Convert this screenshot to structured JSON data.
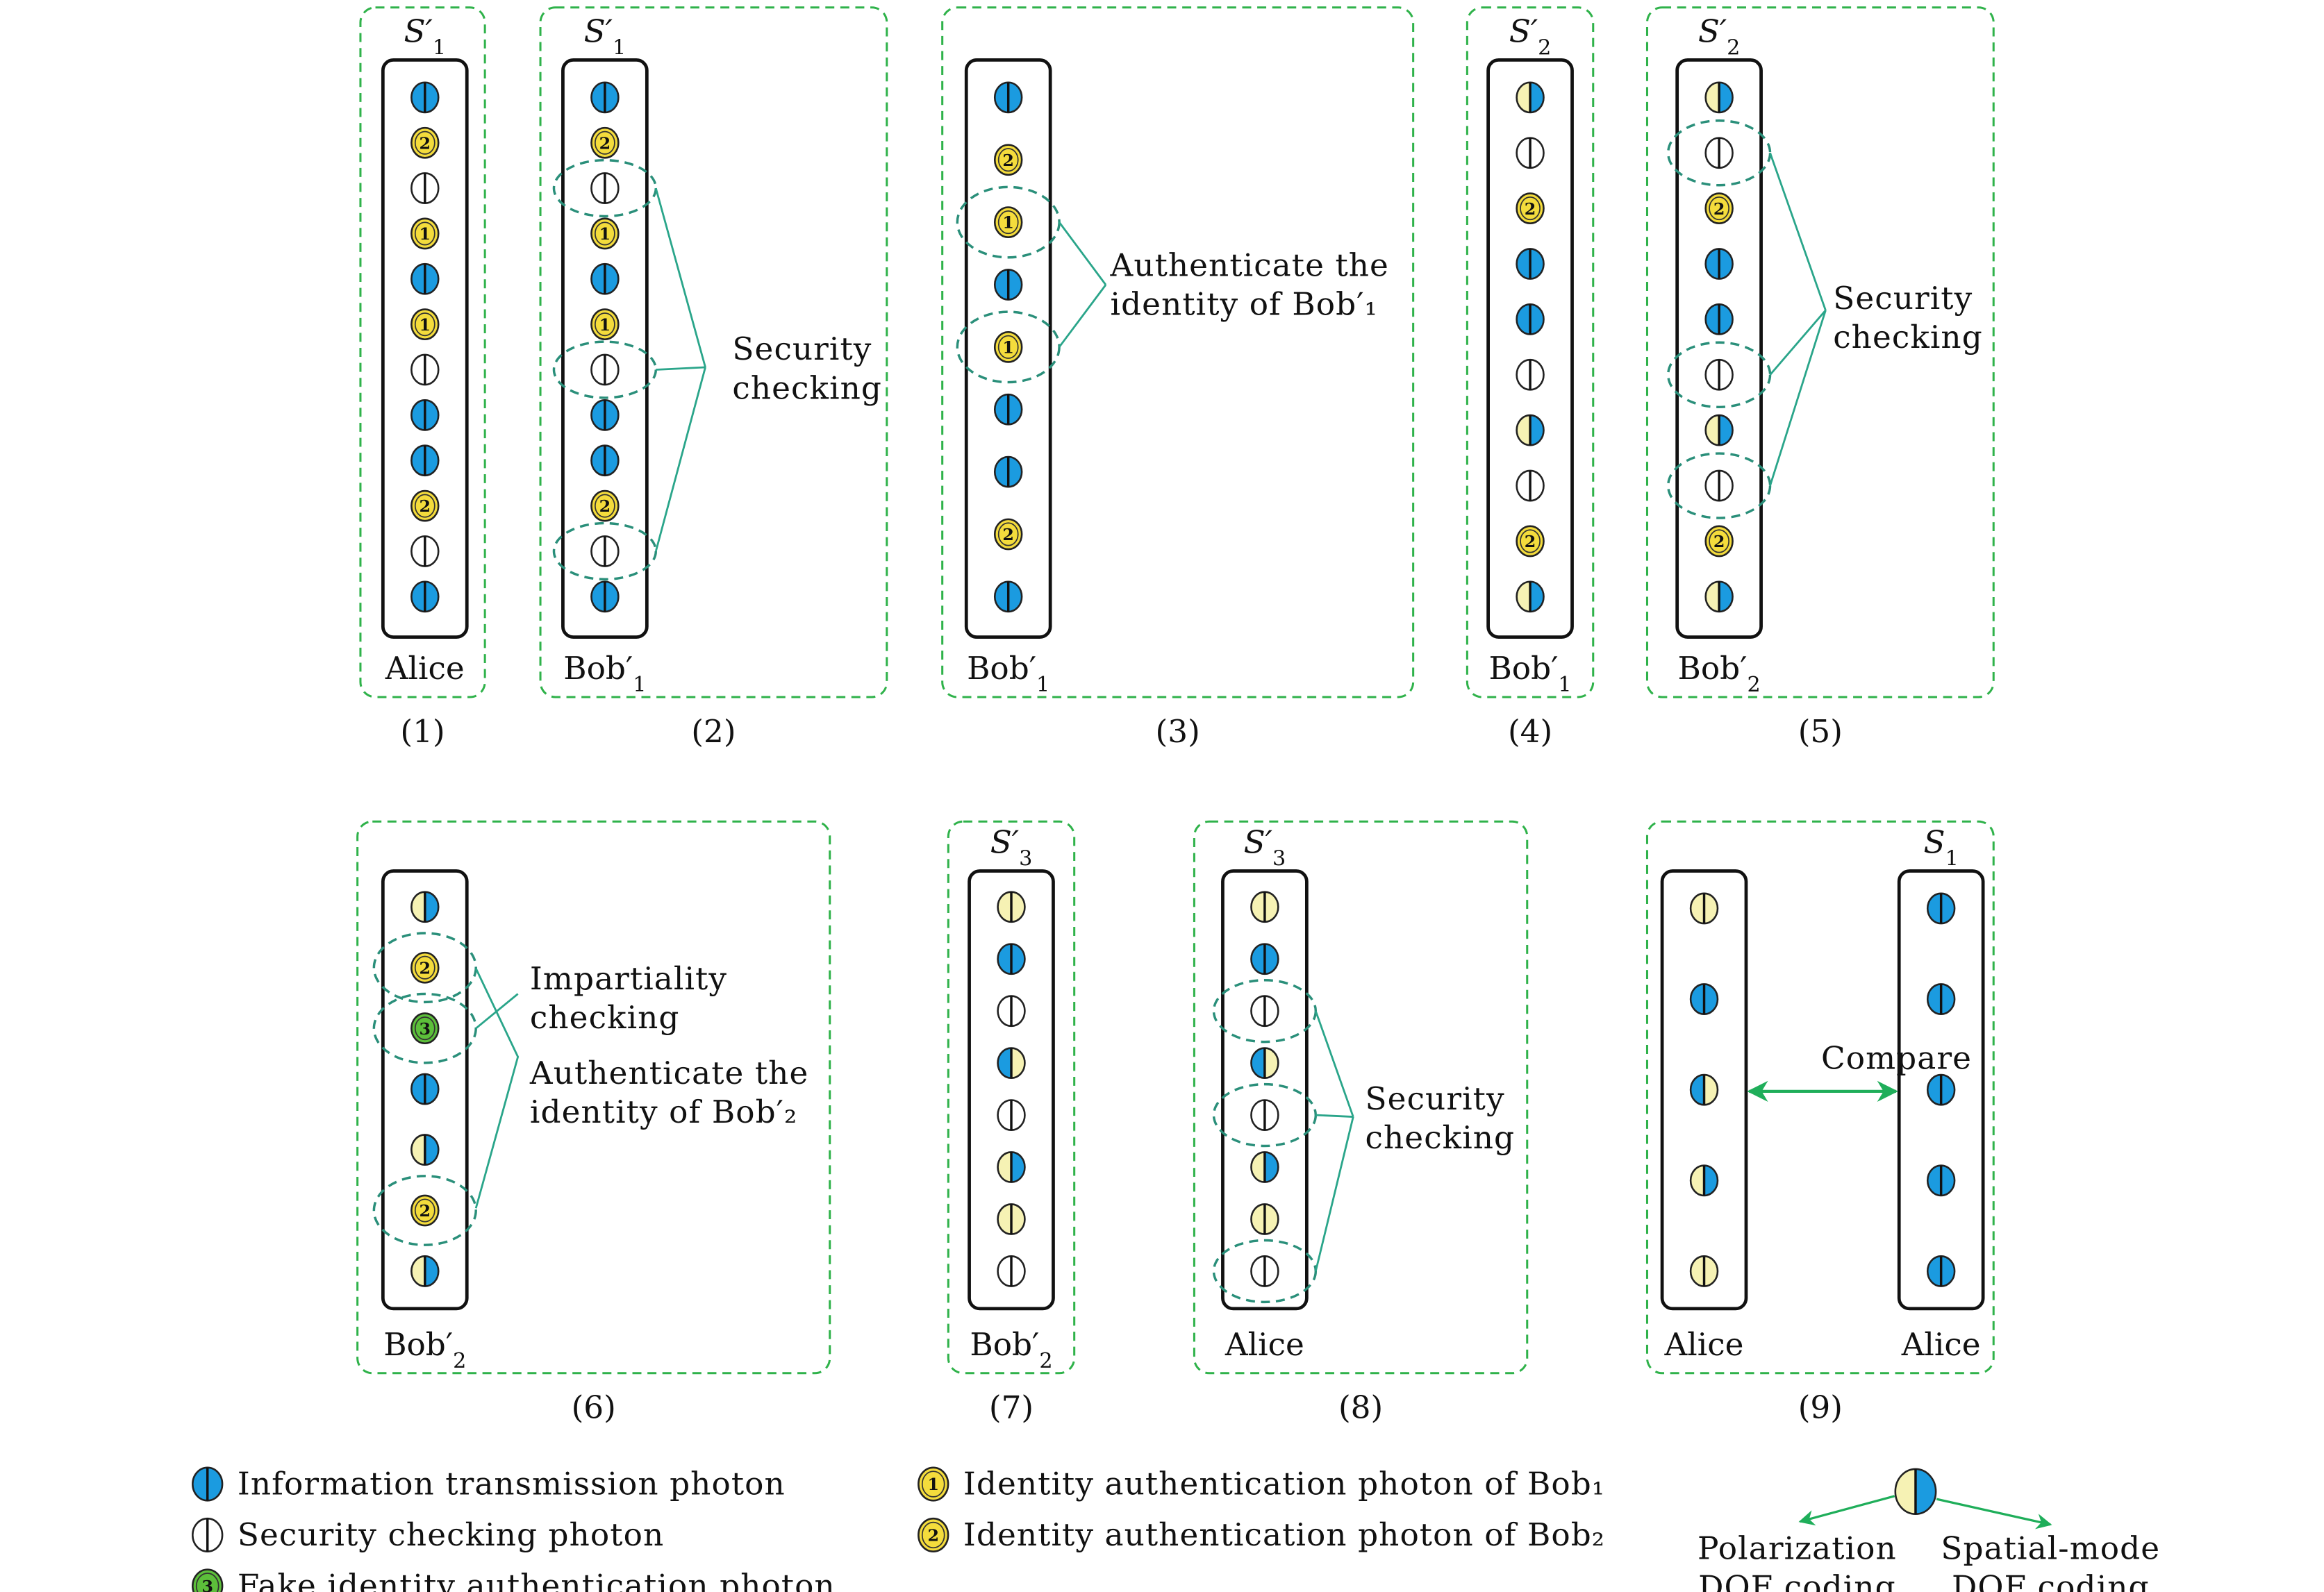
{
  "colors": {
    "information_blue": "#1b9be0",
    "identity_yellow": "#f4dc3c",
    "polarization_light_yellow": "#f6f2b4",
    "fake_green": "#5cbf3a",
    "security_white": "#ffffff",
    "panel_border_green": "#2fb24a",
    "bracket_teal": "#2aa58a",
    "arrow_green": "#1fae5a"
  },
  "photon_types": {
    "B": "information-transmission-photon",
    "W": "security-checking-photon",
    "Y1": "identity-authentication-photon-bob1",
    "Y2": "identity-authentication-photon-bob2",
    "G3": "fake-identity-authentication-photon",
    "M": "polarization-yellow-spatial-blue-photon",
    "R": "polarization-blue-spatial-yellow-photon",
    "L": "polarization-yellow-photon"
  },
  "panels": [
    {
      "caption": "(1)",
      "columns": [
        {
          "top": {
            "base": "S′",
            "sub": "1"
          },
          "bottom": {
            "base": "Alice",
            "sub": ""
          },
          "photons": [
            "B",
            "Y2",
            "W",
            "Y1",
            "B",
            "Y1",
            "W",
            "B",
            "B",
            "Y2",
            "W",
            "B"
          ],
          "circled": []
        }
      ],
      "annotations": []
    },
    {
      "caption": "(2)",
      "columns": [
        {
          "top": {
            "base": "S′",
            "sub": "1"
          },
          "bottom": {
            "base": "Bob′",
            "sub": "1"
          },
          "photons": [
            "B",
            "Y2",
            "W",
            "Y1",
            "B",
            "Y1",
            "W",
            "B",
            "B",
            "Y2",
            "W",
            "B"
          ],
          "circled": [
            2,
            6,
            10
          ]
        }
      ],
      "annotations": [
        {
          "lines": [
            "Security",
            "checking"
          ]
        }
      ]
    },
    {
      "caption": "(3)",
      "columns": [
        {
          "top": {
            "base": "",
            "sub": ""
          },
          "bottom": {
            "base": "Bob′",
            "sub": "1"
          },
          "photons": [
            "B",
            "Y2",
            "Y1",
            "B",
            "Y1",
            "B",
            "B",
            "Y2",
            "B"
          ],
          "circled": [
            2,
            4
          ]
        }
      ],
      "annotations": [
        {
          "lines": [
            "Authenticate the",
            "identity of Bob′₁"
          ]
        }
      ]
    },
    {
      "caption": "(4)",
      "columns": [
        {
          "top": {
            "base": "S′",
            "sub": "2"
          },
          "bottom": {
            "base": "Bob′",
            "sub": "1"
          },
          "photons": [
            "M",
            "W",
            "Y2",
            "B",
            "B",
            "W",
            "M",
            "W",
            "Y2",
            "M"
          ],
          "circled": []
        }
      ],
      "annotations": []
    },
    {
      "caption": "(5)",
      "columns": [
        {
          "top": {
            "base": "S′",
            "sub": "2"
          },
          "bottom": {
            "base": "Bob′",
            "sub": "2"
          },
          "photons": [
            "M",
            "W",
            "Y2",
            "B",
            "B",
            "W",
            "M",
            "W",
            "Y2",
            "M"
          ],
          "circled": [
            1,
            5,
            7
          ]
        }
      ],
      "annotations": [
        {
          "lines": [
            "Security",
            "checking"
          ]
        }
      ]
    },
    {
      "caption": "(6)",
      "columns": [
        {
          "top": {
            "base": "",
            "sub": ""
          },
          "bottom": {
            "base": "Bob′",
            "sub": "2"
          },
          "photons": [
            "M",
            "Y2",
            "G3",
            "B",
            "M",
            "Y2",
            "M"
          ],
          "circled": [
            1,
            2,
            5
          ]
        }
      ],
      "annotations": [
        {
          "lines": [
            "Impartiality",
            "checking"
          ]
        },
        {
          "lines": [
            "Authenticate the",
            "identity of Bob′₂"
          ]
        }
      ]
    },
    {
      "caption": "(7)",
      "columns": [
        {
          "top": {
            "base": "S′",
            "sub": "3"
          },
          "bottom": {
            "base": "Bob′",
            "sub": "2"
          },
          "photons": [
            "L",
            "B",
            "W",
            "R",
            "W",
            "M",
            "L",
            "W"
          ],
          "circled": []
        }
      ],
      "annotations": []
    },
    {
      "caption": "(8)",
      "columns": [
        {
          "top": {
            "base": "S′",
            "sub": "3"
          },
          "bottom": {
            "base": "Alice",
            "sub": ""
          },
          "photons": [
            "L",
            "B",
            "W",
            "R",
            "W",
            "M",
            "L",
            "W"
          ],
          "circled": [
            2,
            4,
            7
          ]
        }
      ],
      "annotations": [
        {
          "lines": [
            "Security",
            "checking"
          ]
        }
      ]
    },
    {
      "caption": "(9)",
      "columns": [
        {
          "top": {
            "base": "",
            "sub": ""
          },
          "bottom": {
            "base": "Alice",
            "sub": ""
          },
          "photons": [
            "L",
            "B",
            "R",
            "M",
            "L"
          ],
          "circled": []
        },
        {
          "top": {
            "base": "S",
            "sub": "1"
          },
          "bottom": {
            "base": "Alice",
            "sub": ""
          },
          "photons": [
            "B",
            "B",
            "B",
            "B",
            "B"
          ],
          "circled": []
        }
      ],
      "annotations": [
        {
          "lines": [
            "Compare"
          ]
        }
      ]
    }
  ],
  "legend": {
    "items": [
      {
        "type": "B",
        "label": "Information transmission photon"
      },
      {
        "type": "W",
        "label": "Security checking photon"
      },
      {
        "type": "G3",
        "label": "Fake identity authentication photon"
      },
      {
        "type": "Y1",
        "label": "Identity authentication photon of Bob₁"
      },
      {
        "type": "Y2",
        "label": "Identity authentication photon of Bob₂"
      }
    ],
    "dof": {
      "type": "M",
      "left": [
        "Polarization",
        "DOF coding"
      ],
      "right": [
        "Spatial-mode",
        "DOF coding"
      ]
    }
  }
}
